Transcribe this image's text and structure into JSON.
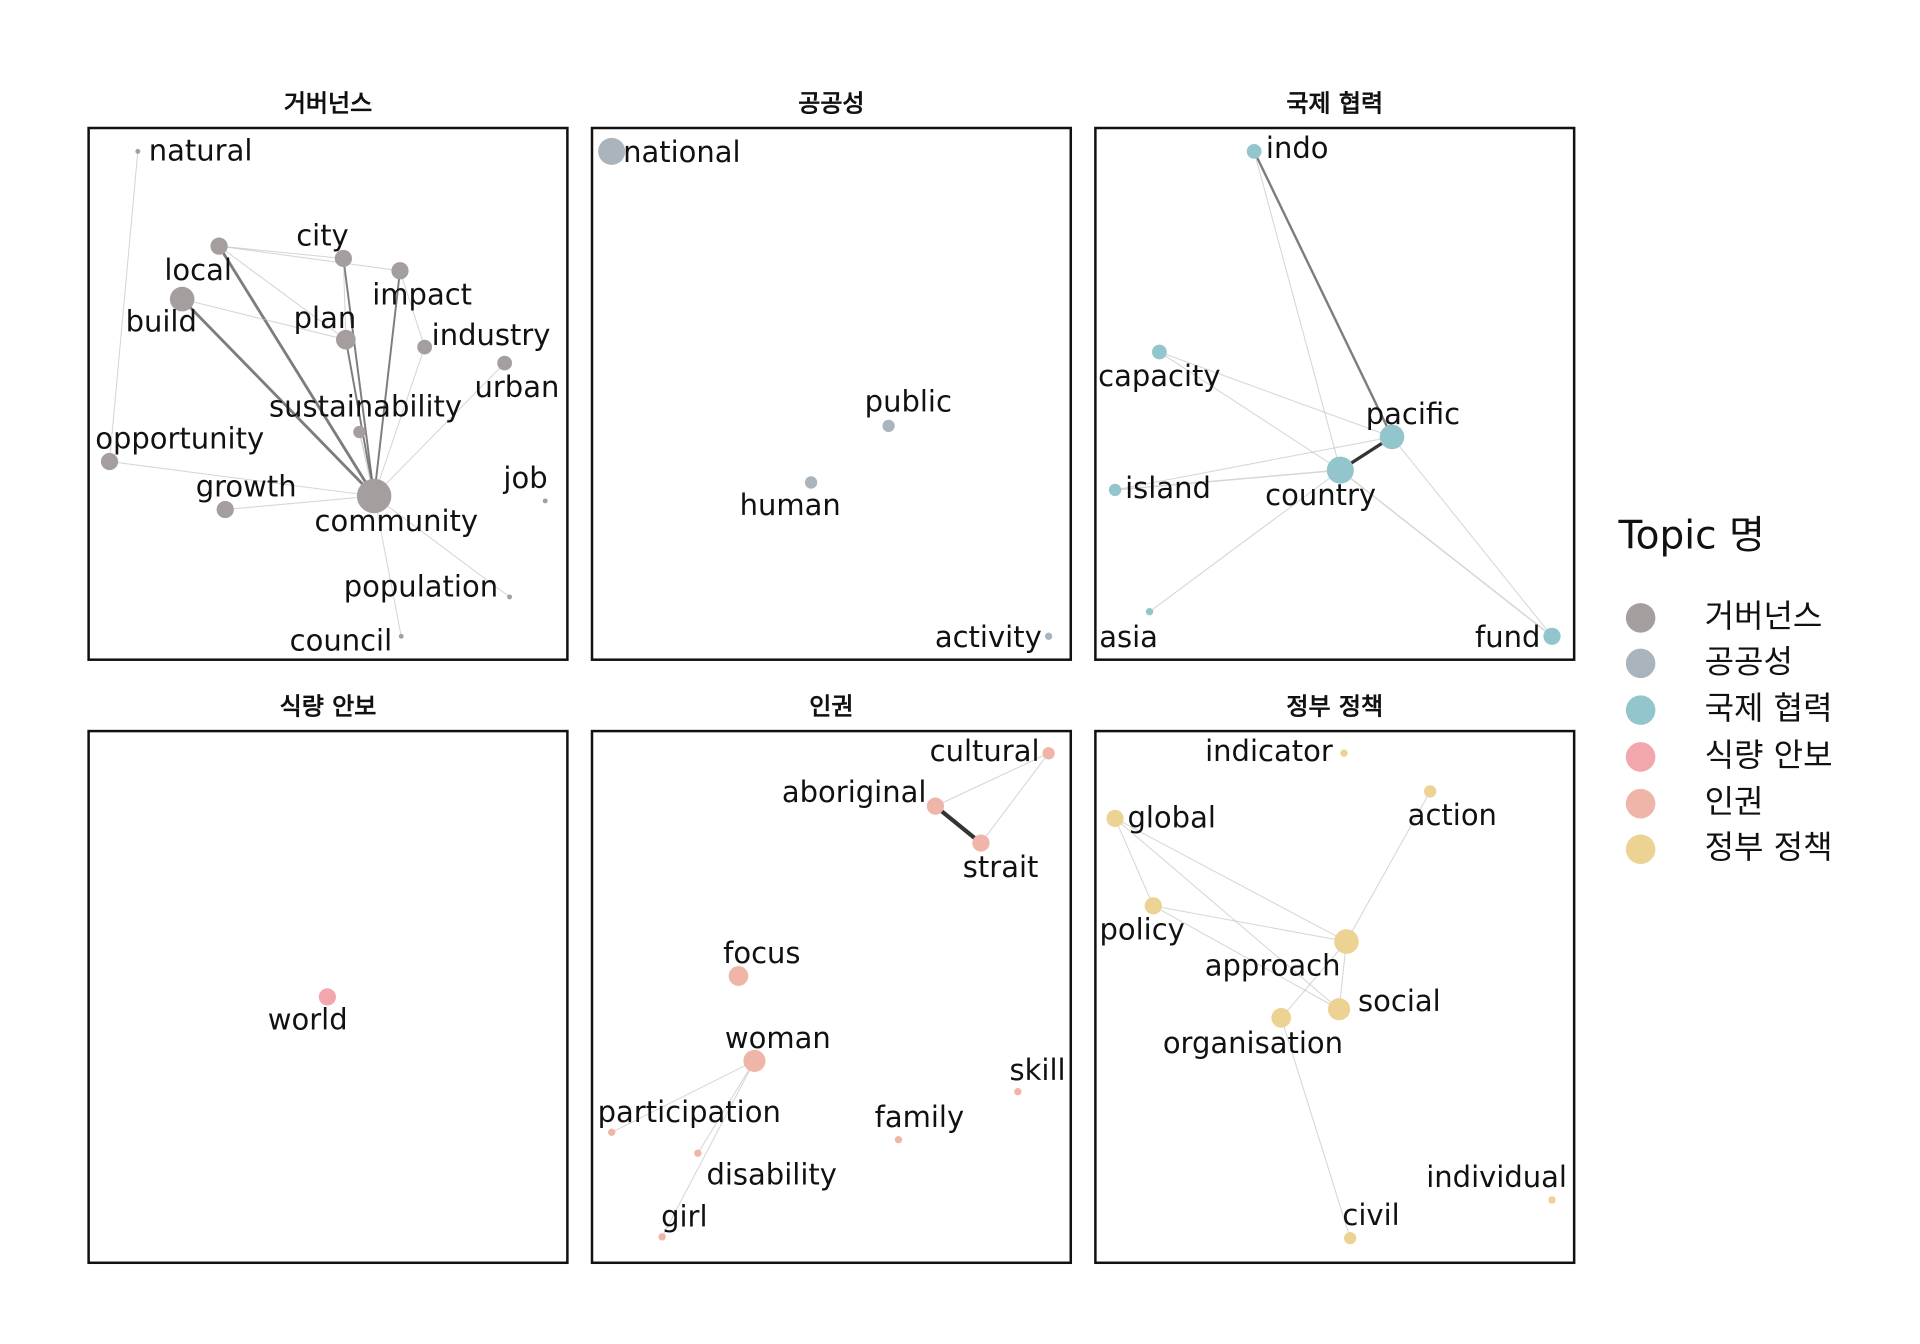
{
  "legend_title": "Topic 명",
  "chart_data": [
    {
      "type": "network",
      "title": "거버넌스",
      "color": "#a59e9e",
      "nodes": [
        {
          "label": "natural",
          "size": 2
        },
        {
          "label": "local",
          "size": 7
        },
        {
          "label": "city",
          "size": 7
        },
        {
          "label": "impact",
          "size": 7
        },
        {
          "label": "build",
          "size": 10
        },
        {
          "label": "plan",
          "size": 8
        },
        {
          "label": "industry",
          "size": 6
        },
        {
          "label": "urban",
          "size": 6
        },
        {
          "label": "sustainability",
          "size": 5
        },
        {
          "label": "opportunity",
          "size": 7
        },
        {
          "label": "growth",
          "size": 7
        },
        {
          "label": "community",
          "size": 14
        },
        {
          "label": "job",
          "size": 2
        },
        {
          "label": "population",
          "size": 2
        },
        {
          "label": "council",
          "size": 2
        }
      ],
      "edges": [
        {
          "source": "local",
          "target": "community",
          "weight": 5
        },
        {
          "source": "build",
          "target": "community",
          "weight": 5
        },
        {
          "source": "city",
          "target": "community",
          "weight": 3
        },
        {
          "source": "impact",
          "target": "community",
          "weight": 3
        },
        {
          "source": "plan",
          "target": "community",
          "weight": 3
        },
        {
          "source": "sustainability",
          "target": "community",
          "weight": 2
        },
        {
          "source": "opportunity",
          "target": "community",
          "weight": 1
        },
        {
          "source": "growth",
          "target": "community",
          "weight": 1
        },
        {
          "source": "urban",
          "target": "community",
          "weight": 1
        },
        {
          "source": "population",
          "target": "community",
          "weight": 1
        },
        {
          "source": "council",
          "target": "community",
          "weight": 1
        },
        {
          "source": "industry",
          "target": "community",
          "weight": 1
        },
        {
          "source": "natural",
          "target": "opportunity",
          "weight": 1
        },
        {
          "source": "local",
          "target": "city",
          "weight": 1
        },
        {
          "source": "local",
          "target": "plan",
          "weight": 1
        },
        {
          "source": "build",
          "target": "plan",
          "weight": 1
        },
        {
          "source": "city",
          "target": "plan",
          "weight": 1
        },
        {
          "source": "impact",
          "target": "industry",
          "weight": 1
        },
        {
          "source": "local",
          "target": "impact",
          "weight": 1
        }
      ]
    },
    {
      "type": "network",
      "title": "공공성",
      "color": "#a9b4bc",
      "nodes": [
        {
          "label": "national",
          "size": 11
        },
        {
          "label": "public",
          "size": 5
        },
        {
          "label": "human",
          "size": 5
        },
        {
          "label": "activity",
          "size": 3
        }
      ],
      "edges": []
    },
    {
      "type": "network",
      "title": "국제 협력",
      "color": "#92c6cc",
      "nodes": [
        {
          "label": "indo",
          "size": 6
        },
        {
          "label": "capacity",
          "size": 6
        },
        {
          "label": "pacific",
          "size": 10
        },
        {
          "label": "island",
          "size": 5
        },
        {
          "label": "country",
          "size": 11
        },
        {
          "label": "asia",
          "size": 3
        },
        {
          "label": "fund",
          "size": 7
        }
      ],
      "edges": [
        {
          "source": "indo",
          "target": "pacific",
          "weight": 4
        },
        {
          "source": "indo",
          "target": "country",
          "weight": 1
        },
        {
          "source": "pacific",
          "target": "country",
          "weight": 6
        },
        {
          "source": "capacity",
          "target": "pacific",
          "weight": 1
        },
        {
          "source": "capacity",
          "target": "country",
          "weight": 1
        },
        {
          "source": "island",
          "target": "pacific",
          "weight": 1
        },
        {
          "source": "island",
          "target": "country",
          "weight": 2
        },
        {
          "source": "pacific",
          "target": "fund",
          "weight": 1
        },
        {
          "source": "country",
          "target": "fund",
          "weight": 2
        },
        {
          "source": "asia",
          "target": "country",
          "weight": 1
        }
      ]
    },
    {
      "type": "network",
      "title": "식량 안보",
      "color": "#f2a6ae",
      "nodes": [
        {
          "label": "world",
          "size": 7
        }
      ],
      "edges": []
    },
    {
      "type": "network",
      "title": "인권",
      "color": "#efb5a8",
      "nodes": [
        {
          "label": "cultural",
          "size": 5
        },
        {
          "label": "aboriginal",
          "size": 7
        },
        {
          "label": "strait",
          "size": 7
        },
        {
          "label": "focus",
          "size": 8
        },
        {
          "label": "woman",
          "size": 9
        },
        {
          "label": "skill",
          "size": 3
        },
        {
          "label": "participation",
          "size": 3
        },
        {
          "label": "family",
          "size": 3
        },
        {
          "label": "disability",
          "size": 3
        },
        {
          "label": "girl",
          "size": 3
        }
      ],
      "edges": [
        {
          "source": "aboriginal",
          "target": "strait",
          "weight": 8
        },
        {
          "source": "aboriginal",
          "target": "cultural",
          "weight": 1
        },
        {
          "source": "cultural",
          "target": "strait",
          "weight": 1
        },
        {
          "source": "woman",
          "target": "participation",
          "weight": 1
        },
        {
          "source": "woman",
          "target": "disability",
          "weight": 1
        },
        {
          "source": "woman",
          "target": "girl",
          "weight": 1
        }
      ]
    },
    {
      "type": "network",
      "title": "정부 정책",
      "color": "#ecd394",
      "nodes": [
        {
          "label": "indicator",
          "size": 3
        },
        {
          "label": "action",
          "size": 5
        },
        {
          "label": "global",
          "size": 7
        },
        {
          "label": "policy",
          "size": 7
        },
        {
          "label": "approach",
          "size": 10
        },
        {
          "label": "social",
          "size": 9
        },
        {
          "label": "organisation",
          "size": 8
        },
        {
          "label": "civil",
          "size": 5
        },
        {
          "label": "individual",
          "size": 3
        }
      ],
      "edges": [
        {
          "source": "global",
          "target": "approach",
          "weight": 1
        },
        {
          "source": "global",
          "target": "policy",
          "weight": 1
        },
        {
          "source": "policy",
          "target": "approach",
          "weight": 1
        },
        {
          "source": "policy",
          "target": "social",
          "weight": 1
        },
        {
          "source": "action",
          "target": "approach",
          "weight": 1
        },
        {
          "source": "approach",
          "target": "social",
          "weight": 1
        },
        {
          "source": "approach",
          "target": "organisation",
          "weight": 1
        },
        {
          "source": "organisation",
          "target": "civil",
          "weight": 1
        },
        {
          "source": "global",
          "target": "social",
          "weight": 1
        }
      ]
    }
  ]
}
